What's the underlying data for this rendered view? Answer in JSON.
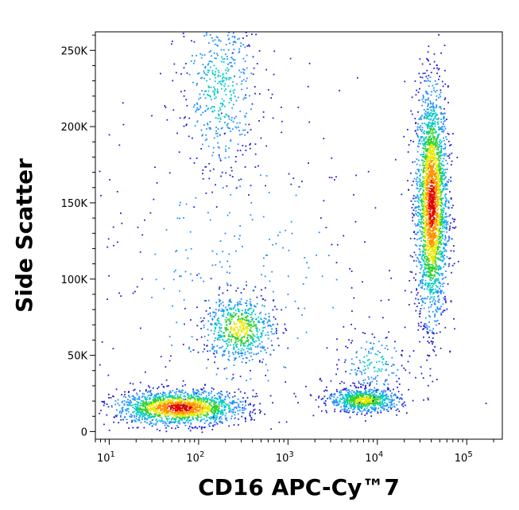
{
  "chart_data": {
    "type": "scatter",
    "plot_style": "flow cytometry density dot plot (pseudocolor: blue low density → green → yellow → red high density)",
    "xlabel": "CD16 APC-Cy™7",
    "ylabel": "Side Scatter",
    "x_scale": "log",
    "xlim": [
      7,
      250000
    ],
    "ylim": [
      -5000,
      262144
    ],
    "x_ticks": [
      {
        "value": 10,
        "base": "10",
        "exp": "1"
      },
      {
        "value": 100,
        "base": "10",
        "exp": "2"
      },
      {
        "value": 1000,
        "base": "10",
        "exp": "3"
      },
      {
        "value": 10000,
        "base": "10",
        "exp": "4"
      },
      {
        "value": 100000,
        "base": "10",
        "exp": "5"
      }
    ],
    "y_ticks": [
      {
        "value": 0,
        "label": "0"
      },
      {
        "value": 50000,
        "label": "50K"
      },
      {
        "value": 100000,
        "label": "100K"
      },
      {
        "value": 150000,
        "label": "150K"
      },
      {
        "value": 200000,
        "label": "200K"
      },
      {
        "value": 250000,
        "label": "250K"
      }
    ],
    "grid": false,
    "legend": "none",
    "colormap": [
      "#1f1fd6",
      "#1e90ff",
      "#00c8c8",
      "#30d030",
      "#e8e800",
      "#ff9000",
      "#e00000"
    ],
    "populations": [
      {
        "x_center": 40000,
        "y_center": 150000,
        "x_log_spread": 0.09,
        "y_spread": 38000,
        "count": 2600,
        "density": "high"
      },
      {
        "x_center": 60,
        "y_center": 16000,
        "x_log_spread": 0.35,
        "y_spread": 5500,
        "count": 1700,
        "density": "high"
      },
      {
        "x_center": 7000,
        "y_center": 21000,
        "x_log_spread": 0.2,
        "y_spread": 4000,
        "count": 750,
        "density": "medium"
      },
      {
        "x_center": 280,
        "y_center": 68000,
        "x_log_spread": 0.2,
        "y_spread": 11000,
        "count": 650,
        "density": "medium"
      },
      {
        "x_center": 170,
        "y_center": 225000,
        "x_log_spread": 0.22,
        "y_spread": 28000,
        "count": 500,
        "density": "low"
      },
      {
        "x_center": 9000,
        "y_center": 45000,
        "x_log_spread": 0.18,
        "y_spread": 10000,
        "count": 150,
        "density": "low"
      },
      {
        "x_center": 300,
        "y_center": 100000,
        "x_log_spread": 0.9,
        "y_spread": 60000,
        "count": 350,
        "density": "sparse"
      }
    ]
  }
}
